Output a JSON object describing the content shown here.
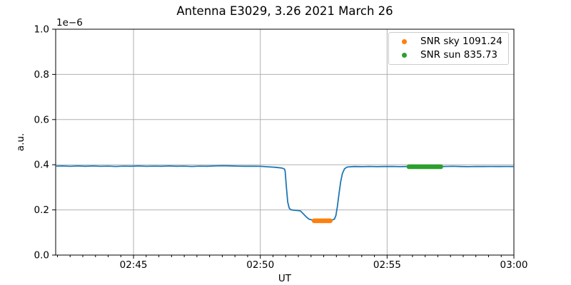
{
  "figure": {
    "background": "#ffffff"
  },
  "chart_data": {
    "type": "line",
    "title": "Antenna E3029, 3.26 2021 March 26",
    "xlabel": "UT",
    "ylabel": "a.u.",
    "y_offset_text": "1e−6",
    "x_axis_unit": "minutes after 02:00 UT",
    "xlim_minutes": [
      41.93,
      60.0
    ],
    "ylim": [
      0.0,
      1.0
    ],
    "grid": true,
    "grid_color": "#b0b0b0",
    "axis_color": "#000000",
    "x_ticks": [
      {
        "minutes": 45,
        "label": "02:45"
      },
      {
        "minutes": 50,
        "label": "02:50"
      },
      {
        "minutes": 55,
        "label": "02:55"
      },
      {
        "minutes": 60,
        "label": "03:00"
      }
    ],
    "x_minor_ticks": {
      "start": 42.0,
      "step": 0.5
    },
    "y_ticks": [
      {
        "value": 0.0,
        "label": "0.0"
      },
      {
        "value": 0.2,
        "label": "0.2"
      },
      {
        "value": 0.4,
        "label": "0.4"
      },
      {
        "value": 0.6,
        "label": "0.6"
      },
      {
        "value": 0.8,
        "label": "0.8"
      },
      {
        "value": 1.0,
        "label": "1.0"
      }
    ],
    "series": [
      {
        "name": "antenna-signal",
        "color": "#1f77b4",
        "points": [
          [
            41.93,
            0.394
          ],
          [
            42.2,
            0.3945
          ],
          [
            42.5,
            0.393
          ],
          [
            42.8,
            0.3945
          ],
          [
            43.1,
            0.3935
          ],
          [
            43.4,
            0.3945
          ],
          [
            43.7,
            0.393
          ],
          [
            44.0,
            0.394
          ],
          [
            44.3,
            0.3925
          ],
          [
            44.6,
            0.394
          ],
          [
            44.9,
            0.3935
          ],
          [
            45.2,
            0.3945
          ],
          [
            45.5,
            0.393
          ],
          [
            45.8,
            0.394
          ],
          [
            46.1,
            0.3935
          ],
          [
            46.4,
            0.3945
          ],
          [
            46.7,
            0.3935
          ],
          [
            47.0,
            0.394
          ],
          [
            47.3,
            0.3925
          ],
          [
            47.6,
            0.394
          ],
          [
            47.9,
            0.3935
          ],
          [
            48.2,
            0.3945
          ],
          [
            48.5,
            0.3955
          ],
          [
            48.8,
            0.395
          ],
          [
            49.1,
            0.394
          ],
          [
            49.4,
            0.3935
          ],
          [
            49.7,
            0.3935
          ],
          [
            50.0,
            0.393
          ],
          [
            50.3,
            0.391
          ],
          [
            50.6,
            0.3885
          ],
          [
            50.85,
            0.3855
          ],
          [
            50.95,
            0.381
          ],
          [
            50.98,
            0.372
          ],
          [
            51.02,
            0.31
          ],
          [
            51.08,
            0.235
          ],
          [
            51.14,
            0.208
          ],
          [
            51.2,
            0.201
          ],
          [
            51.3,
            0.199
          ],
          [
            51.45,
            0.1975
          ],
          [
            51.58,
            0.1955
          ],
          [
            51.7,
            0.182
          ],
          [
            51.82,
            0.168
          ],
          [
            51.92,
            0.159
          ],
          [
            52.05,
            0.1555
          ],
          [
            52.2,
            0.1535
          ],
          [
            52.35,
            0.1525
          ],
          [
            52.5,
            0.1525
          ],
          [
            52.65,
            0.153
          ],
          [
            52.8,
            0.1545
          ],
          [
            52.92,
            0.159
          ],
          [
            52.98,
            0.175
          ],
          [
            53.04,
            0.215
          ],
          [
            53.1,
            0.27
          ],
          [
            53.17,
            0.325
          ],
          [
            53.24,
            0.362
          ],
          [
            53.32,
            0.382
          ],
          [
            53.42,
            0.3895
          ],
          [
            53.52,
            0.391
          ],
          [
            53.7,
            0.392
          ],
          [
            54.0,
            0.3915
          ],
          [
            54.3,
            0.3925
          ],
          [
            54.6,
            0.3915
          ],
          [
            54.9,
            0.392
          ],
          [
            55.2,
            0.3925
          ],
          [
            55.5,
            0.3915
          ],
          [
            55.8,
            0.392
          ],
          [
            56.1,
            0.3925
          ],
          [
            56.4,
            0.392
          ],
          [
            56.7,
            0.3915
          ],
          [
            57.0,
            0.392
          ],
          [
            57.3,
            0.3925
          ],
          [
            57.6,
            0.393
          ],
          [
            57.9,
            0.392
          ],
          [
            58.2,
            0.3915
          ],
          [
            58.5,
            0.3925
          ],
          [
            58.8,
            0.392
          ],
          [
            59.1,
            0.3925
          ],
          [
            59.4,
            0.392
          ],
          [
            59.7,
            0.3925
          ],
          [
            60.0,
            0.392
          ]
        ]
      }
    ],
    "marker_segments": [
      {
        "name": "SNR sky",
        "color": "#ff7f0e",
        "value": 0.152,
        "start_minutes": 52.12,
        "end_minutes": 52.76
      },
      {
        "name": "SNR sun",
        "color": "#2ca02c",
        "value": 0.391,
        "start_minutes": 55.86,
        "end_minutes": 57.12
      }
    ],
    "legend": {
      "position": "upper right",
      "entries": [
        {
          "label": "SNR sky 1091.24",
          "color": "#ff7f0e"
        },
        {
          "label": "SNR sun 835.73",
          "color": "#2ca02c"
        }
      ]
    }
  }
}
